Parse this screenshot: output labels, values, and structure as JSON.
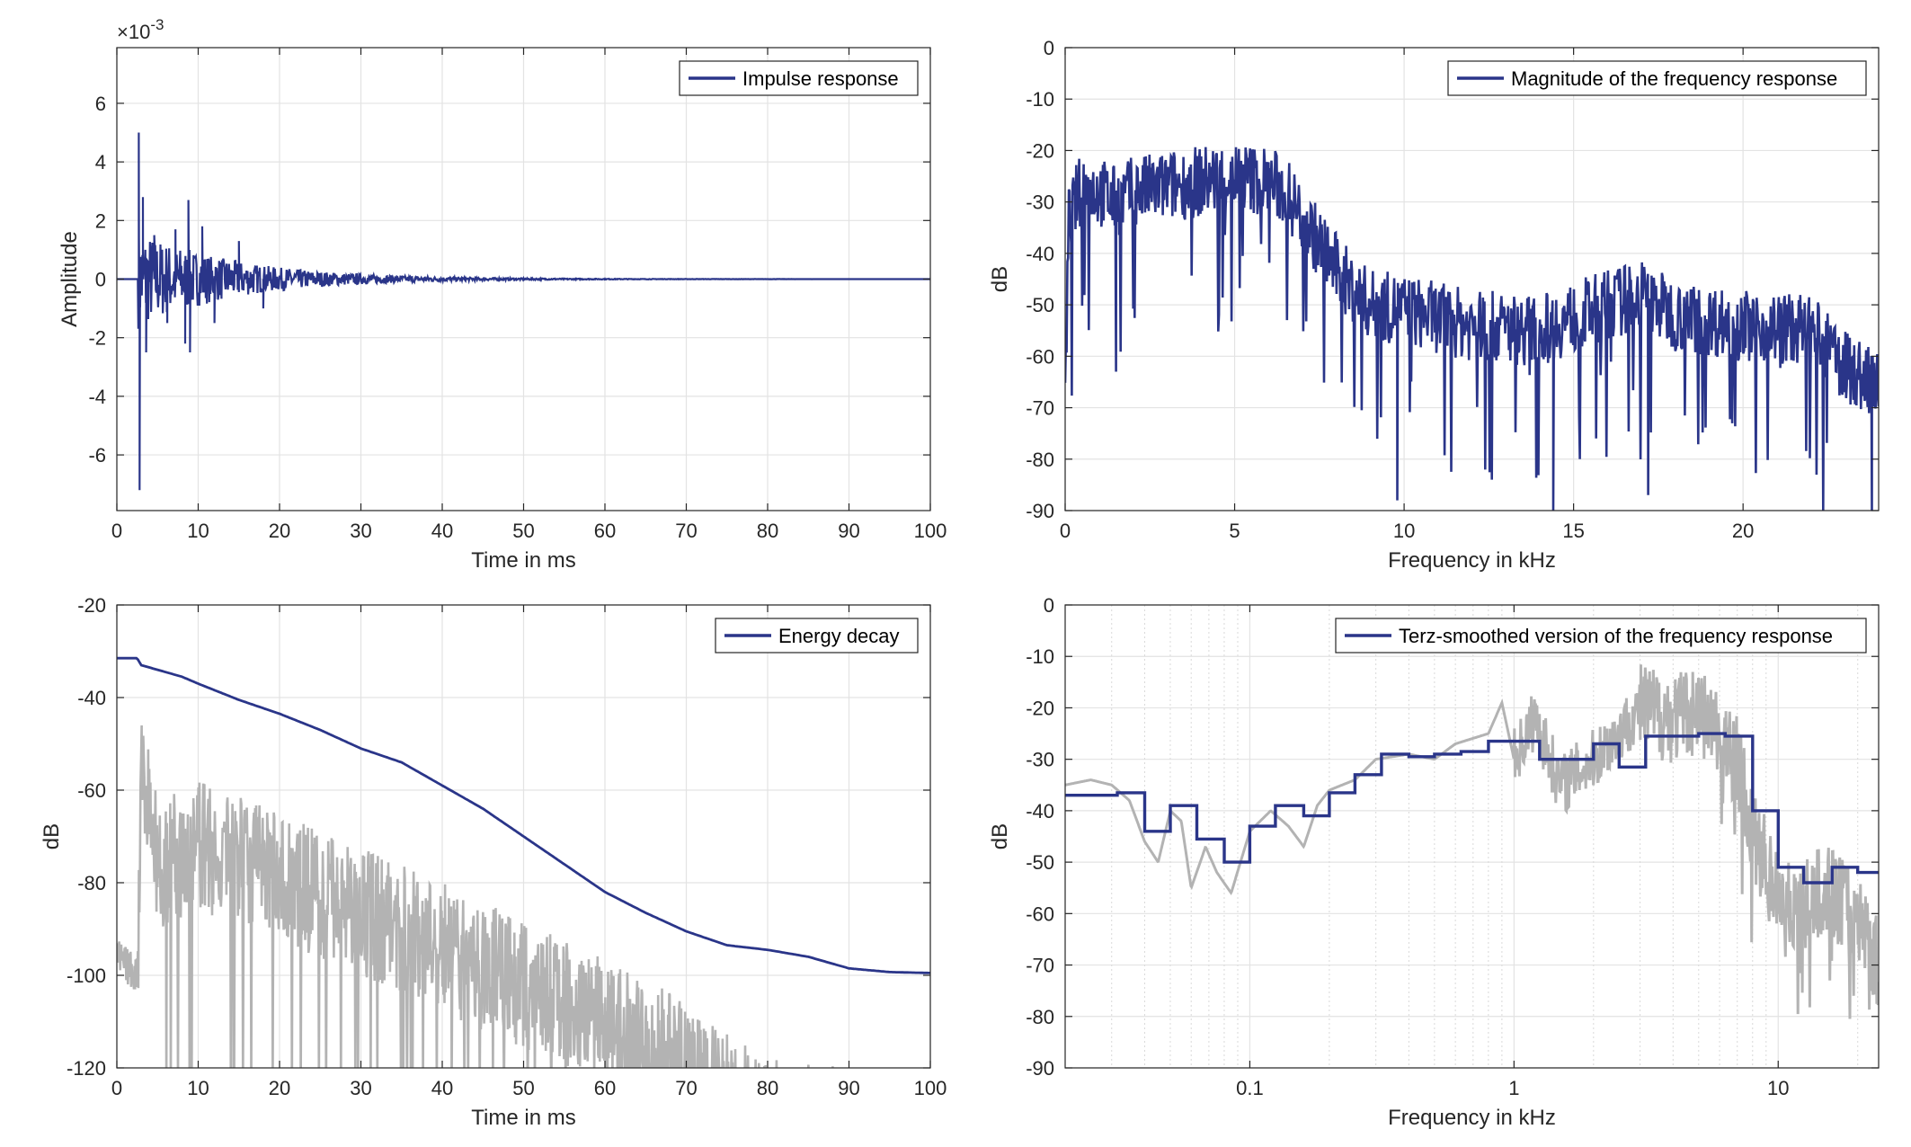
{
  "colors": {
    "main": "#2a3589",
    "gray": "#b3b3b3",
    "grid": "#e3e3e3",
    "axis": "#262626"
  },
  "chart_data": [
    {
      "type": "line",
      "series": [
        {
          "name": "Impulse response",
          "color": "#2a3589"
        }
      ],
      "xlabel": "Time in ms",
      "ylabel": "Amplitude",
      "exponent_label": "×10",
      "exponent_power": "-3",
      "xlim": [
        0,
        100
      ],
      "ylim": [
        -0.0079,
        0.0079
      ],
      "xticks": [
        0,
        10,
        20,
        30,
        40,
        50,
        60,
        70,
        80,
        90,
        100
      ],
      "xtick_labels": [
        "0",
        "10",
        "20",
        "30",
        "40",
        "50",
        "60",
        "70",
        "80",
        "90",
        "100"
      ],
      "yticks": [
        -0.006,
        -0.004,
        -0.002,
        0,
        0.002,
        0.004,
        0.006
      ],
      "ytick_labels": [
        "-6",
        "-4",
        "-2",
        "0",
        "2",
        "4",
        "6"
      ],
      "legend": "top-right",
      "grid": true,
      "key_points": [
        [
          0,
          0
        ],
        [
          2.6,
          0
        ],
        [
          2.7,
          0.005
        ],
        [
          2.8,
          -0.0072
        ],
        [
          3.2,
          0.0028
        ],
        [
          3.6,
          -0.0025
        ],
        [
          4.6,
          0.0015
        ],
        [
          6.2,
          -0.0015
        ],
        [
          7.2,
          0.0017
        ],
        [
          8.4,
          -0.0022
        ],
        [
          8.8,
          0.0027
        ],
        [
          9.0,
          -0.0025
        ],
        [
          10.5,
          0.0018
        ],
        [
          12,
          -0.0015
        ],
        [
          15,
          0.0013
        ],
        [
          18,
          -0.001
        ],
        [
          22,
          0.0007
        ],
        [
          26,
          -0.0006
        ],
        [
          30,
          0.00035
        ],
        [
          35,
          -0.0002
        ],
        [
          40,
          0.00012
        ],
        [
          45,
          -0.0001
        ],
        [
          50,
          5e-05
        ],
        [
          100,
          0
        ]
      ]
    },
    {
      "type": "line",
      "series": [
        {
          "name": "Magnitude of the frequency response",
          "color": "#2a3589"
        }
      ],
      "xlabel": "Frequency in kHz",
      "ylabel": "dB",
      "xlim": [
        0,
        24
      ],
      "ylim": [
        -90,
        0
      ],
      "xticks": [
        0,
        5,
        10,
        15,
        20
      ],
      "xtick_labels": [
        "0",
        "5",
        "10",
        "15",
        "20"
      ],
      "yticks": [
        -90,
        -80,
        -70,
        -60,
        -50,
        -40,
        -30,
        -20,
        -10,
        0
      ],
      "ytick_labels": [
        "-90",
        "-80",
        "-70",
        "-60",
        "-50",
        "-40",
        "-30",
        "-20",
        "-10",
        "0"
      ],
      "legend": "top-right",
      "grid": true,
      "key_points": [
        [
          0,
          -69
        ],
        [
          0.1,
          -34
        ],
        [
          0.3,
          -30
        ],
        [
          0.5,
          -27
        ],
        [
          1,
          -28
        ],
        [
          1.5,
          -30
        ],
        [
          2,
          -28
        ],
        [
          3,
          -27
        ],
        [
          4,
          -26
        ],
        [
          5,
          -25
        ],
        [
          6,
          -26
        ],
        [
          6.5,
          -28
        ],
        [
          7,
          -33
        ],
        [
          7.5,
          -38
        ],
        [
          8,
          -43
        ],
        [
          8.5,
          -47
        ],
        [
          9,
          -50
        ],
        [
          10,
          -51
        ],
        [
          12,
          -54
        ],
        [
          14,
          -55
        ],
        [
          16,
          -50
        ],
        [
          17,
          -48
        ],
        [
          18,
          -52
        ],
        [
          20,
          -54
        ],
        [
          22,
          -55
        ],
        [
          23,
          -62
        ],
        [
          24,
          -66
        ]
      ],
      "dips": [
        [
          1.5,
          -63
        ],
        [
          9.8,
          -88
        ],
        [
          14.4,
          -90
        ],
        [
          17.2,
          -87
        ],
        [
          23.8,
          -90
        ]
      ]
    },
    {
      "type": "line",
      "series": [
        {
          "name": "Energy decay",
          "color": "#2a3589"
        },
        {
          "name": "",
          "color": "#b3b3b3"
        }
      ],
      "xlabel": "Time in ms",
      "ylabel": "dB",
      "xlim": [
        0,
        100
      ],
      "ylim": [
        -120,
        -20
      ],
      "xticks": [
        0,
        10,
        20,
        30,
        40,
        50,
        60,
        70,
        80,
        90,
        100
      ],
      "xtick_labels": [
        "0",
        "10",
        "20",
        "30",
        "40",
        "50",
        "60",
        "70",
        "80",
        "90",
        "100"
      ],
      "yticks": [
        -120,
        -100,
        -80,
        -60,
        -40,
        -20
      ],
      "ytick_labels": [
        "-120",
        "-100",
        "-80",
        "-60",
        "-40",
        "-20"
      ],
      "legend": "top-right",
      "grid": true,
      "decay_points": [
        [
          0,
          -31.5
        ],
        [
          2.5,
          -31.5
        ],
        [
          3,
          -33
        ],
        [
          5,
          -34
        ],
        [
          8,
          -35.5
        ],
        [
          10,
          -37
        ],
        [
          15,
          -40.5
        ],
        [
          20,
          -43.5
        ],
        [
          25,
          -47
        ],
        [
          30,
          -51
        ],
        [
          35,
          -54
        ],
        [
          40,
          -59
        ],
        [
          45,
          -64
        ],
        [
          50,
          -70
        ],
        [
          55,
          -76
        ],
        [
          60,
          -82
        ],
        [
          65,
          -86.5
        ],
        [
          70,
          -90.5
        ],
        [
          75,
          -93.5
        ],
        [
          80,
          -94.5
        ],
        [
          85,
          -96
        ],
        [
          90,
          -98.5
        ],
        [
          95,
          -99.3
        ],
        [
          100,
          -99.5
        ]
      ],
      "envelope_points": [
        [
          0,
          -96
        ],
        [
          2.5,
          -100
        ],
        [
          3,
          -43
        ],
        [
          5,
          -62
        ],
        [
          10,
          -58
        ],
        [
          20,
          -65
        ],
        [
          30,
          -72
        ],
        [
          40,
          -80
        ],
        [
          50,
          -88
        ],
        [
          60,
          -95
        ],
        [
          70,
          -106
        ],
        [
          75,
          -112
        ],
        [
          80,
          -118
        ],
        [
          88,
          -119
        ]
      ]
    },
    {
      "type": "line",
      "series": [
        {
          "name": "Terz-smoothed version of the frequency response",
          "color": "#2a3589"
        },
        {
          "name": "",
          "color": "#b3b3b3"
        }
      ],
      "xlabel": "Frequency in kHz",
      "ylabel": "dB",
      "xscale": "log",
      "xlim": [
        0.02,
        24
      ],
      "ylim": [
        -90,
        0
      ],
      "xticks": [
        0.1,
        1,
        10
      ],
      "xtick_labels": [
        "0.1",
        "1",
        "10"
      ],
      "yticks": [
        -90,
        -80,
        -70,
        -60,
        -50,
        -40,
        -30,
        -20,
        -10,
        0
      ],
      "ytick_labels": [
        "-90",
        "-80",
        "-70",
        "-60",
        "-50",
        "-40",
        "-30",
        "-20",
        "-10",
        "0"
      ],
      "legend": "top-right",
      "grid": true,
      "terz_steps": [
        [
          0.02,
          -37
        ],
        [
          0.0315,
          -36.5
        ],
        [
          0.04,
          -44
        ],
        [
          0.05,
          -39
        ],
        [
          0.063,
          -45.5
        ],
        [
          0.08,
          -50
        ],
        [
          0.1,
          -43
        ],
        [
          0.125,
          -39
        ],
        [
          0.16,
          -41
        ],
        [
          0.2,
          -36.5
        ],
        [
          0.25,
          -33
        ],
        [
          0.315,
          -29
        ],
        [
          0.4,
          -29.5
        ],
        [
          0.5,
          -29
        ],
        [
          0.63,
          -28.5
        ],
        [
          0.8,
          -26.5
        ],
        [
          1.0,
          -26.5
        ],
        [
          1.25,
          -30
        ],
        [
          1.6,
          -30
        ],
        [
          2.0,
          -27
        ],
        [
          2.5,
          -31.5
        ],
        [
          3.15,
          -25.5
        ],
        [
          4.0,
          -25.5
        ],
        [
          5.0,
          -25
        ],
        [
          6.3,
          -25.5
        ],
        [
          8.0,
          -40
        ],
        [
          10.0,
          -51
        ],
        [
          12.5,
          -54
        ],
        [
          16.0,
          -51
        ],
        [
          20.0,
          -52
        ],
        [
          24,
          -52
        ]
      ],
      "gray_points": [
        [
          0.02,
          -35
        ],
        [
          0.025,
          -34
        ],
        [
          0.03,
          -35
        ],
        [
          0.035,
          -38
        ],
        [
          0.04,
          -46
        ],
        [
          0.045,
          -50
        ],
        [
          0.05,
          -40
        ],
        [
          0.055,
          -42
        ],
        [
          0.06,
          -55
        ],
        [
          0.068,
          -47
        ],
        [
          0.075,
          -52
        ],
        [
          0.085,
          -56
        ],
        [
          0.1,
          -44
        ],
        [
          0.12,
          -40
        ],
        [
          0.14,
          -43
        ],
        [
          0.16,
          -47
        ],
        [
          0.18,
          -39
        ],
        [
          0.2,
          -36
        ],
        [
          0.25,
          -34
        ],
        [
          0.3,
          -30
        ],
        [
          0.4,
          -29
        ],
        [
          0.5,
          -30
        ],
        [
          0.6,
          -27
        ],
        [
          0.8,
          -25
        ],
        [
          0.9,
          -19
        ],
        [
          1.0,
          -30
        ],
        [
          1.2,
          -22
        ],
        [
          1.5,
          -35
        ],
        [
          2,
          -30
        ],
        [
          2.5,
          -25
        ],
        [
          3,
          -20
        ],
        [
          4,
          -22
        ],
        [
          5,
          -20
        ],
        [
          6,
          -26
        ],
        [
          7,
          -30
        ],
        [
          8,
          -45
        ],
        [
          10,
          -55
        ],
        [
          12,
          -60
        ],
        [
          15,
          -55
        ],
        [
          20,
          -60
        ],
        [
          24,
          -70
        ]
      ]
    }
  ]
}
